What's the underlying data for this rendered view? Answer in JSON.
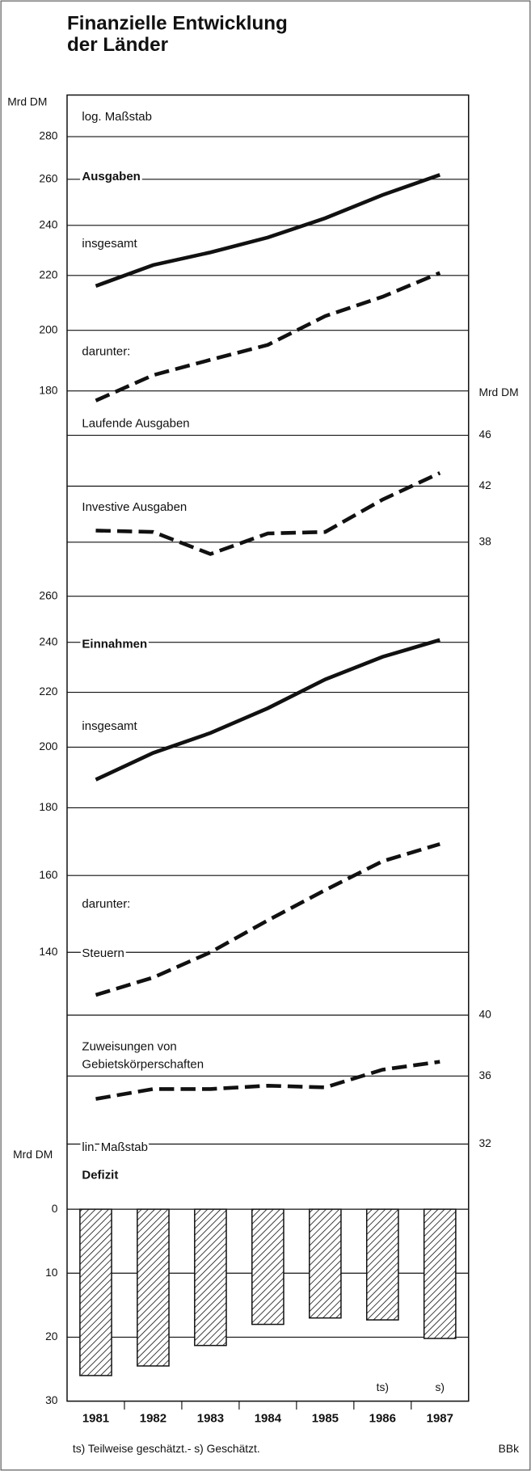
{
  "title": [
    "Finanzielle Entwicklung",
    "der Länder"
  ],
  "footnote": "ts) Teilweise geschätzt.- s) Geschätzt.",
  "source": "BBk",
  "chart_data": [
    {
      "type": "line",
      "log_scale": true,
      "grid": true,
      "ylabel": "Mrd DM",
      "y2label": "Mrd DM",
      "annotations": [
        "log. Maßstab",
        "Ausgaben",
        "darunter:"
      ],
      "x": [
        1981,
        1982,
        1983,
        1984,
        1985,
        1986,
        1987
      ],
      "ylim": [
        126,
        301
      ],
      "yticks": [
        180,
        200,
        220,
        240,
        260,
        280
      ],
      "y2lim": [
        34.5,
        84.5
      ],
      "y2ticks": [
        38,
        42,
        46
      ],
      "series": [
        {
          "name": "insgesamt",
          "color": "#111",
          "style": "solid",
          "values": [
            216,
            224,
            229,
            235,
            243,
            253,
            262
          ]
        },
        {
          "name": "Laufende Ausgaben",
          "color": "#111",
          "style": "dashed",
          "values": [
            177,
            185,
            190,
            195,
            205,
            212,
            221
          ]
        },
        {
          "name": "Investive Ausgaben",
          "color": "#111",
          "style": "dashed",
          "axis": "y2",
          "values": [
            38.8,
            38.7,
            37.2,
            38.6,
            38.7,
            41,
            43
          ]
        }
      ]
    },
    {
      "type": "line",
      "log_scale": true,
      "grid": true,
      "annotations": [
        "Einnahmen",
        "darunter:"
      ],
      "x": [
        1981,
        1982,
        1983,
        1984,
        1985,
        1986,
        1987
      ],
      "ylim": [
        100,
        260
      ],
      "yticks": [
        140,
        160,
        180,
        200,
        220,
        240,
        260
      ],
      "y2lim": [
        31.9,
        82.6
      ],
      "y2ticks": [
        32,
        36,
        40
      ],
      "series": [
        {
          "name": "insgesamt",
          "color": "#111",
          "style": "solid",
          "values": [
            189,
            198,
            205,
            214,
            225,
            234,
            241
          ]
        },
        {
          "name": "Steuern",
          "color": "#111",
          "style": "dashed",
          "values": [
            130,
            134,
            140,
            148,
            156,
            164,
            169
          ]
        },
        {
          "name": [
            "Zuweisungen von",
            "Gebietskörperschaften"
          ],
          "color": "#111",
          "style": "dashed",
          "axis": "y2",
          "values": [
            34.6,
            35.2,
            35.2,
            35.4,
            35.3,
            36.4,
            36.9
          ]
        }
      ]
    },
    {
      "type": "bar",
      "grid": true,
      "y_reversed": true,
      "ylabel": "Mrd DM",
      "annotations": [
        "lin. Maßstab",
        "Defizit"
      ],
      "categories": [
        "1981",
        "1982",
        "1983",
        "1984",
        "1985",
        "1986",
        "1987"
      ],
      "bar_notes": [
        null,
        null,
        null,
        null,
        null,
        "ts)",
        "s)"
      ],
      "values": [
        26,
        24.5,
        21.3,
        18,
        17,
        17.3,
        20.2
      ],
      "color": "#fff",
      "hatch": true,
      "ylim": [
        0,
        30
      ],
      "yticks": [
        0,
        10,
        20,
        30
      ]
    }
  ]
}
